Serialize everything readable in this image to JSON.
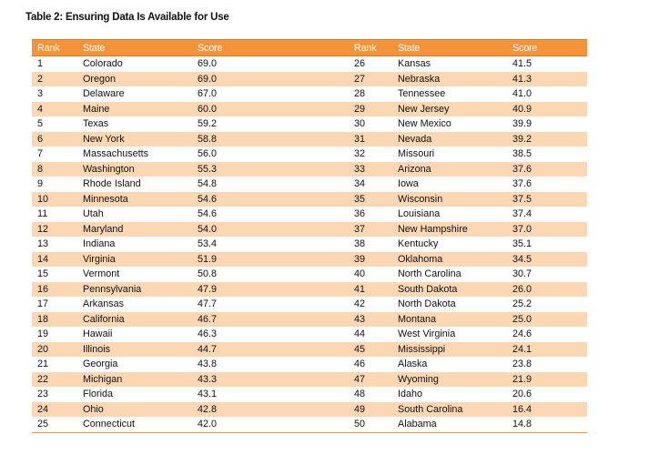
{
  "title": "Table 2: Ensuring Data Is Available for Use",
  "headers": [
    "Rank",
    "State",
    "Score",
    "Rank",
    "State",
    "Score"
  ],
  "rows": [
    [
      [
        "1",
        "Colorado",
        "69.0"
      ],
      [
        "26",
        "Kansas",
        "41.5"
      ]
    ],
    [
      [
        "2",
        "Oregon",
        "69.0"
      ],
      [
        "27",
        "Nebraska",
        "41.3"
      ]
    ],
    [
      [
        "3",
        "Delaware",
        "67.0"
      ],
      [
        "28",
        "Tennessee",
        "41.0"
      ]
    ],
    [
      [
        "4",
        "Maine",
        "60.0"
      ],
      [
        "29",
        "New Jersey",
        "40.9"
      ]
    ],
    [
      [
        "5",
        "Texas",
        "59.2"
      ],
      [
        "30",
        "New Mexico",
        "39.9"
      ]
    ],
    [
      [
        "6",
        "New York",
        "58.8"
      ],
      [
        "31",
        "Nevada",
        "39.2"
      ]
    ],
    [
      [
        "7",
        "Massachusetts",
        "56.0"
      ],
      [
        "32",
        "Missouri",
        "38.5"
      ]
    ],
    [
      [
        "8",
        "Washington",
        "55.3"
      ],
      [
        "33",
        "Arizona",
        "37.6"
      ]
    ],
    [
      [
        "9",
        "Rhode Island",
        "54.8"
      ],
      [
        "34",
        "Iowa",
        "37.6"
      ]
    ],
    [
      [
        "10",
        "Minnesota",
        "54.6"
      ],
      [
        "35",
        "Wisconsin",
        "37.5"
      ]
    ],
    [
      [
        "11",
        "Utah",
        "54.6"
      ],
      [
        "36",
        "Louisiana",
        "37.4"
      ]
    ],
    [
      [
        "12",
        "Maryland",
        "54.0"
      ],
      [
        "37",
        "New Hampshire",
        "37.0"
      ]
    ],
    [
      [
        "13",
        "Indiana",
        "53.4"
      ],
      [
        "38",
        "Kentucky",
        "35.1"
      ]
    ],
    [
      [
        "14",
        "Virginia",
        "51.9"
      ],
      [
        "39",
        "Oklahoma",
        "34.5"
      ]
    ],
    [
      [
        "15",
        "Vermont",
        "50.8"
      ],
      [
        "40",
        "North Carolina",
        "30.7"
      ]
    ],
    [
      [
        "16",
        "Pennsylvania",
        "47.9"
      ],
      [
        "41",
        "South Dakota",
        "26.0"
      ]
    ],
    [
      [
        "17",
        "Arkansas",
        "47.7"
      ],
      [
        "42",
        "North Dakota",
        "25.2"
      ]
    ],
    [
      [
        "18",
        "California",
        "46.7"
      ],
      [
        "43",
        "Montana",
        "25.0"
      ]
    ],
    [
      [
        "19",
        "Hawaii",
        "46.3"
      ],
      [
        "44",
        "West Virginia",
        "24.6"
      ]
    ],
    [
      [
        "20",
        "Illinois",
        "44.7"
      ],
      [
        "45",
        "Mississippi",
        "24.1"
      ]
    ],
    [
      [
        "21",
        "Georgia",
        "43.8"
      ],
      [
        "46",
        "Alaska",
        "23.8"
      ]
    ],
    [
      [
        "22",
        "Michigan",
        "43.3"
      ],
      [
        "47",
        "Wyoming",
        "21.9"
      ]
    ],
    [
      [
        "23",
        "Florida",
        "43.1"
      ],
      [
        "48",
        "Idaho",
        "20.6"
      ]
    ],
    [
      [
        "24",
        "Ohio",
        "42.8"
      ],
      [
        "49",
        "South Carolina",
        "16.4"
      ]
    ],
    [
      [
        "25",
        "Connecticut",
        "42.0"
      ],
      [
        "50",
        "Alabama",
        "14.8"
      ]
    ]
  ],
  "colors": {
    "header_bg": "#f5933b",
    "stripe_bg": "#fbd7b4",
    "header_text": "#ffffff"
  }
}
